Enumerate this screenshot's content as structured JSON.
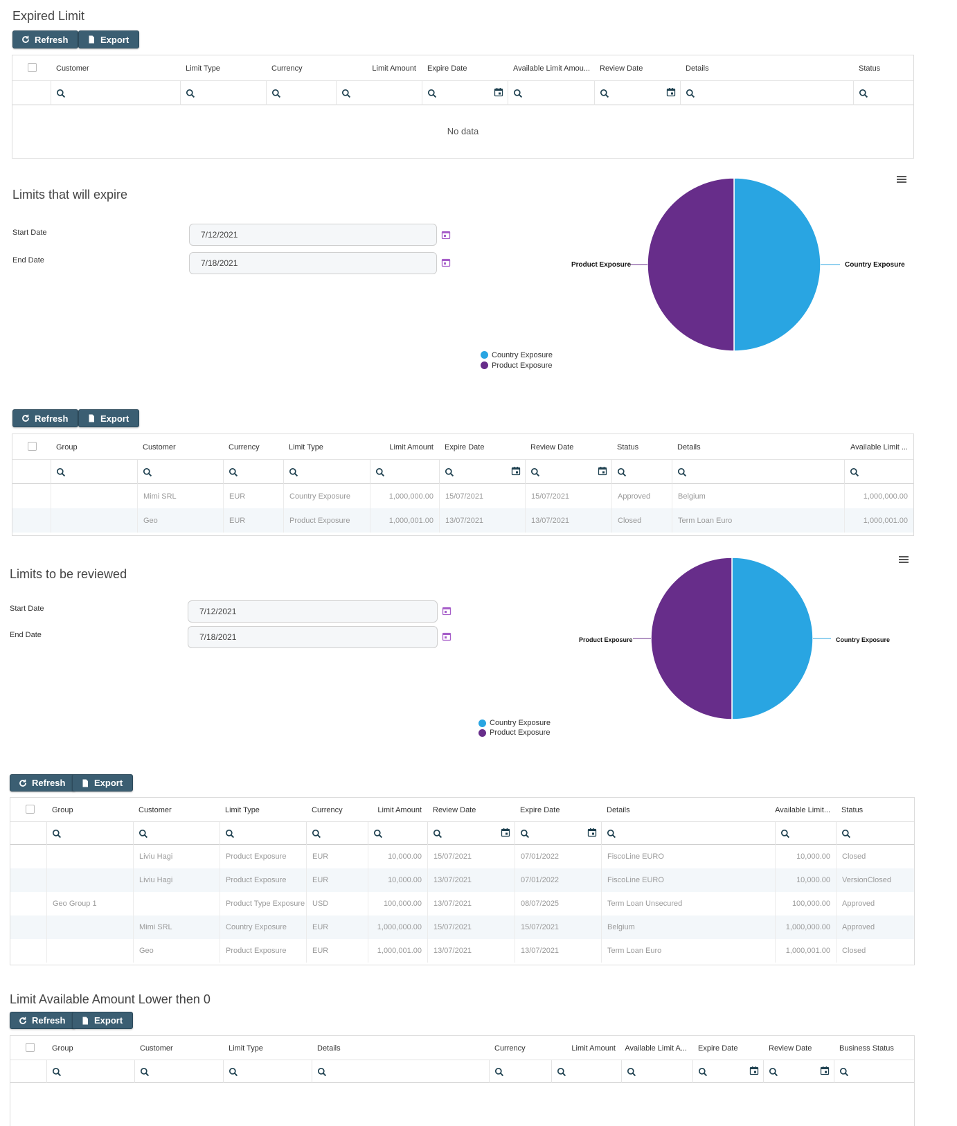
{
  "colors": {
    "country": "#29a5e2",
    "product": "#672d8a",
    "button": "#3b5e72",
    "calendar": "#a65ec9"
  },
  "buttons": {
    "refresh": "Refresh",
    "export": "Export"
  },
  "expired": {
    "title": "Expired Limit",
    "columns": [
      "Customer",
      "Limit Type",
      "Currency",
      "Limit Amount",
      "Expire Date",
      "Available Limit Amou...",
      "Review Date",
      "Details",
      "Status"
    ],
    "no_data": "No data"
  },
  "will_expire": {
    "title": "Limits that will expire",
    "start_label": "Start Date",
    "start_value": "7/12/2021",
    "end_label": "End Date",
    "end_value": "7/18/2021",
    "columns": [
      "Group",
      "Customer",
      "Currency",
      "Limit Type",
      "Limit Amount",
      "Expire Date",
      "Review Date",
      "Status",
      "Details",
      "Available Limit ..."
    ],
    "rows": [
      [
        "",
        "Mimi SRL",
        "EUR",
        "Country Exposure",
        "1,000,000.00",
        "15/07/2021",
        "15/07/2021",
        "Approved",
        "Belgium",
        "1,000,000.00"
      ],
      [
        "",
        "Geo",
        "EUR",
        "Product Exposure",
        "1,000,001.00",
        "13/07/2021",
        "13/07/2021",
        "Closed",
        "Term Loan Euro",
        "1,000,001.00"
      ]
    ]
  },
  "to_review": {
    "title": "Limits to be reviewed",
    "start_label": "Start Date",
    "start_value": "7/12/2021",
    "end_label": "End Date",
    "end_value": "7/18/2021",
    "columns": [
      "Group",
      "Customer",
      "Limit Type",
      "Currency",
      "Limit Amount",
      "Review Date",
      "Expire Date",
      "Details",
      "Available Limit...",
      "Status"
    ],
    "rows": [
      [
        "",
        "Liviu Hagi",
        "Product Exposure",
        "EUR",
        "10,000.00",
        "15/07/2021",
        "07/01/2022",
        "FiscoLine EURO",
        "10,000.00",
        "Closed"
      ],
      [
        "",
        "Liviu Hagi",
        "Product Exposure",
        "EUR",
        "10,000.00",
        "13/07/2021",
        "07/01/2022",
        "FiscoLine EURO",
        "10,000.00",
        "VersionClosed"
      ],
      [
        "Geo Group 1",
        "",
        "Product Type Exposure",
        "USD",
        "100,000.00",
        "13/07/2021",
        "08/07/2025",
        "Term Loan Unsecured",
        "100,000.00",
        "Approved"
      ],
      [
        "",
        "Mimi SRL",
        "Country Exposure",
        "EUR",
        "1,000,000.00",
        "15/07/2021",
        "15/07/2021",
        "Belgium",
        "1,000,000.00",
        "Approved"
      ],
      [
        "",
        "Geo",
        "Product Exposure",
        "EUR",
        "1,000,001.00",
        "13/07/2021",
        "13/07/2021",
        "Term Loan Euro",
        "1,000,001.00",
        "Closed"
      ]
    ]
  },
  "lower_zero": {
    "title": "Limit Available Amount Lower then 0",
    "columns": [
      "Group",
      "Customer",
      "Limit Type",
      "Details",
      "Currency",
      "Limit Amount",
      "Available Limit A...",
      "Expire Date",
      "Review Date",
      "Business Status"
    ]
  },
  "chart_data": [
    {
      "type": "pie",
      "categories": [
        "Country Exposure",
        "Product Exposure"
      ],
      "values": [
        50,
        50
      ],
      "legend": "bottom-left",
      "slice_labels": [
        "Country Exposure",
        "Product Exposure"
      ]
    },
    {
      "type": "pie",
      "categories": [
        "Country Exposure",
        "Product Exposure"
      ],
      "values": [
        50,
        50
      ],
      "legend": "bottom-left",
      "slice_labels": [
        "Country Exposure",
        "Product Exposure"
      ]
    }
  ]
}
